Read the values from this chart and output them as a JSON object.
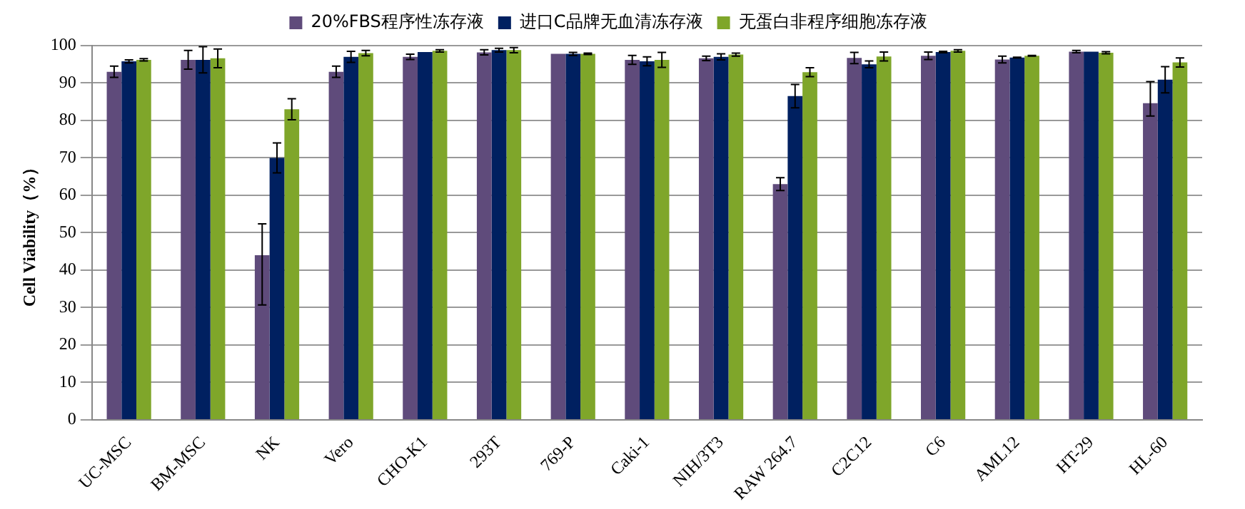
{
  "chart_data": {
    "type": "bar",
    "ylabel": "Cell Viability（%）",
    "categories": [
      "UC-MSC",
      "BM-MSC",
      "NK",
      "Vero",
      "CHO-K1",
      "293T",
      "769-P",
      "Caki-1",
      "NIH/3T3",
      "RAW 264.7",
      "C2C12",
      "C6",
      "AML12",
      "HT-29",
      "HL-60"
    ],
    "series": [
      {
        "name": "20%FBS程序性冻存液",
        "color": "#5f4b7b",
        "values": [
          93,
          96.2,
          44,
          93,
          97,
          98.2,
          97.8,
          96.2,
          96.6,
          63,
          96.7,
          97.3,
          96.3,
          98.4,
          84.6
        ],
        "errors": [
          1.5,
          2.5,
          [
            30.7,
            52.4
          ],
          1.5,
          0.7,
          0.7,
          null,
          1.2,
          0.6,
          1.7,
          1.5,
          1,
          0.9,
          0.3,
          [
            81.2,
            90.4
          ]
        ]
      },
      {
        "name": "进口C品牌无血清冻存液",
        "color": "#002060",
        "values": [
          95.8,
          96.2,
          70,
          97,
          98.3,
          98.8,
          97.8,
          95.8,
          97,
          86.5,
          95,
          98.3,
          96.8,
          98.4,
          90.9
        ],
        "errors": [
          0.4,
          3.5,
          4,
          1.5,
          null,
          0.5,
          0.4,
          1.2,
          0.8,
          3.1,
          0.9,
          0.2,
          0.1,
          null,
          3.5
        ]
      },
      {
        "name": "无蛋白非程序细胞冻存液",
        "color": "#7fa62a",
        "values": [
          96.2,
          96.6,
          83,
          98,
          98.6,
          98.8,
          97.8,
          96.2,
          97.6,
          92.9,
          97.1,
          98.6,
          97.3,
          98.1,
          95.5
        ],
        "errors": [
          0.3,
          2.5,
          2.8,
          0.7,
          0.3,
          0.7,
          0.2,
          2,
          0.4,
          1.2,
          1.2,
          0.3,
          0.1,
          0.3,
          1.2
        ]
      }
    ],
    "ylim": [
      0,
      100
    ],
    "yticks": [
      0,
      10,
      20,
      30,
      40,
      50,
      60,
      70,
      80,
      90,
      100
    ],
    "grid": "y",
    "legend": "top"
  }
}
